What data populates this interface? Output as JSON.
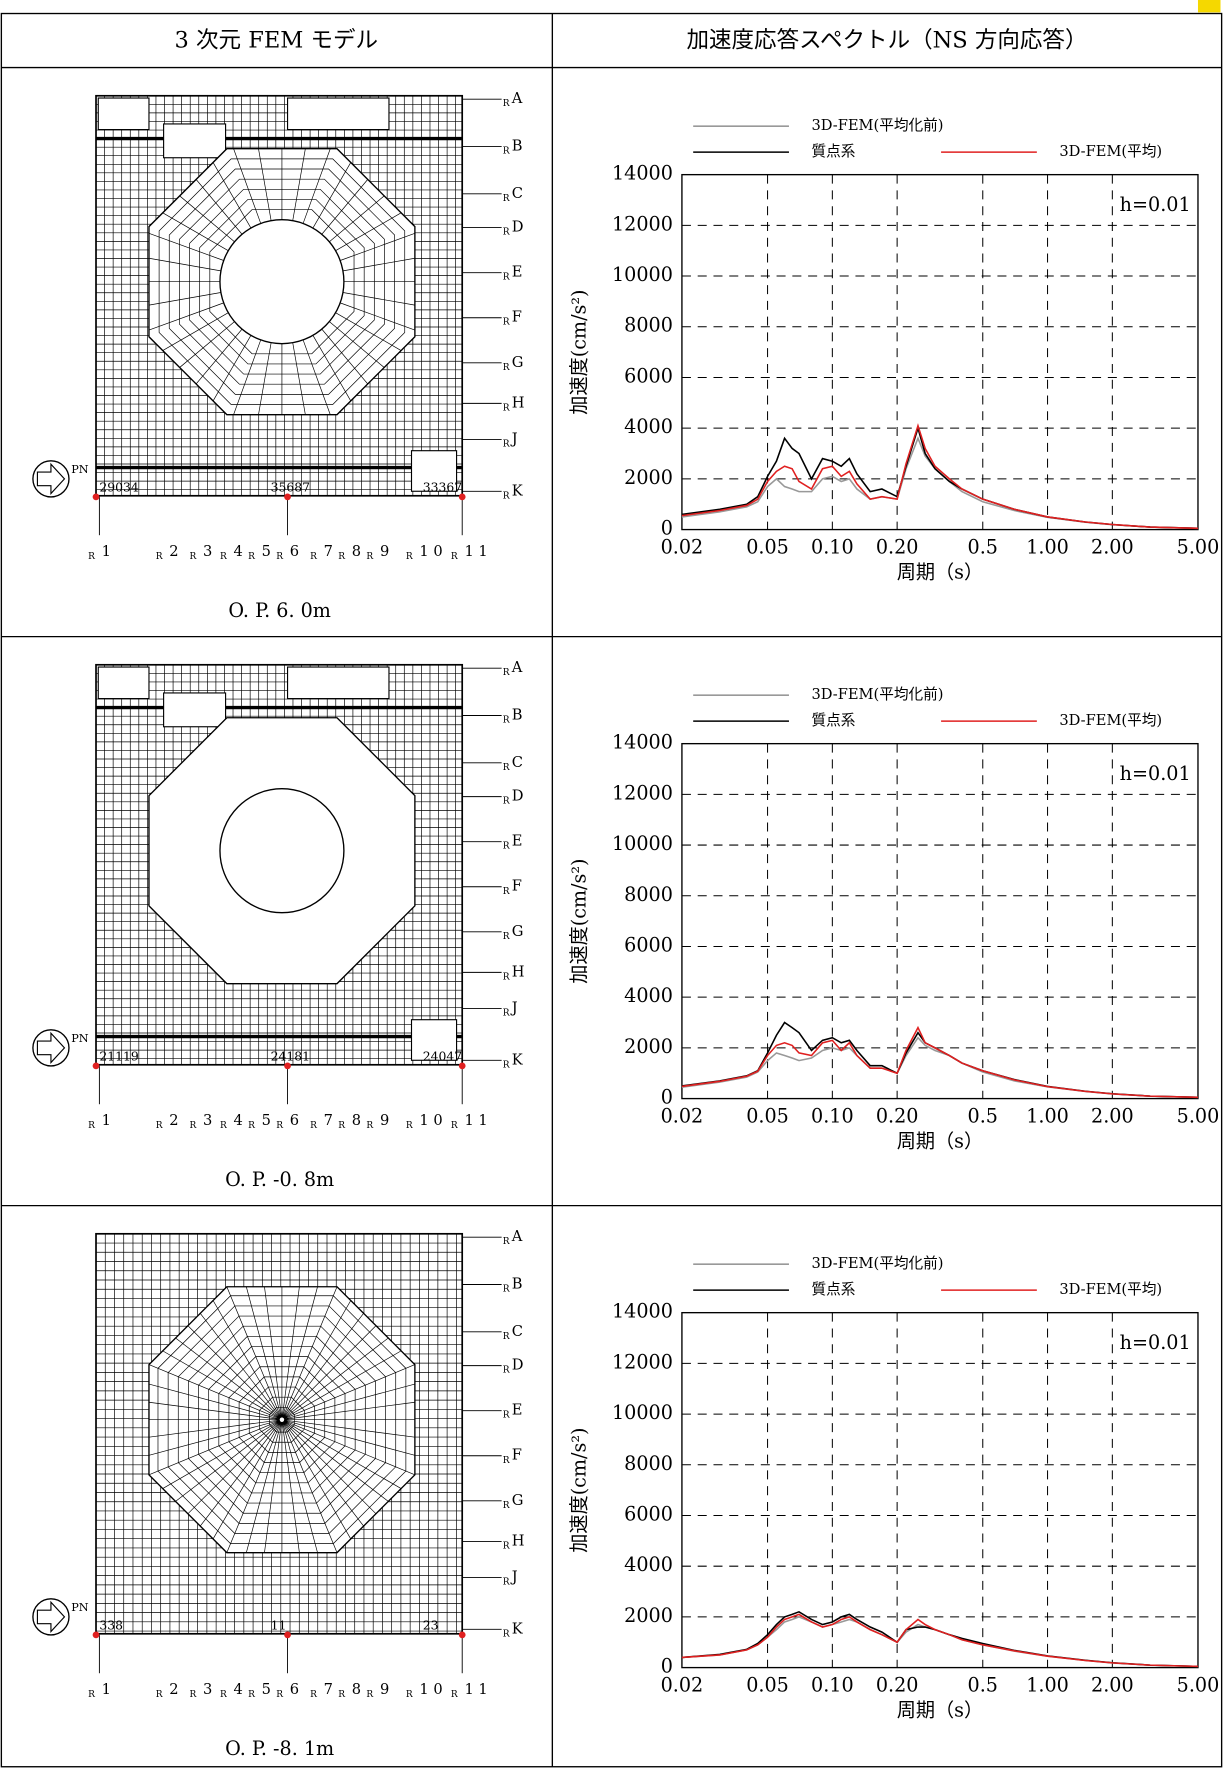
{
  "table": {
    "headers": [
      "3 次元 FEM モデル",
      "加速度応答スペクトル（NS 方向応答）"
    ],
    "rows": [
      {
        "model": {
          "level": "O. P. 6. 0m",
          "prefix": "R",
          "pn": "PN",
          "row_axes": [
            "A",
            "B",
            "C",
            "D",
            "E",
            "F",
            "G",
            "H",
            "J",
            "K"
          ],
          "col_axes": [
            "1",
            "2",
            "3",
            "4",
            "5",
            "6",
            "7",
            "8",
            "9",
            "1 0",
            "1 1"
          ],
          "node_labels": [
            "29034",
            "35687",
            "33367"
          ]
        },
        "chart": {
          "type": "line",
          "xlabel": "周期（s）",
          "ylabel": "加速度(cm/s²)",
          "annotation": "h=0.01",
          "log_x": true,
          "grid": true,
          "xlim": [
            0.02,
            5
          ],
          "ylim": [
            0,
            14000
          ],
          "xticks": [
            0.02,
            0.05,
            {
              "value": 0.1,
              "label": "0.10"
            },
            {
              "value": 0.2,
              "label": "0.20"
            },
            0.5,
            {
              "value": 1,
              "label": "1.00"
            },
            {
              "value": 2,
              "label": "2.00"
            },
            {
              "value": 5,
              "label": "5.00"
            }
          ],
          "yticks": [
            0,
            2000,
            4000,
            6000,
            8000,
            10000,
            12000,
            14000
          ],
          "x": [
            0.02,
            0.03,
            0.04,
            0.045,
            0.05,
            0.055,
            0.06,
            0.065,
            0.07,
            0.08,
            0.09,
            0.1,
            0.11,
            0.12,
            0.13,
            0.15,
            0.17,
            0.2,
            0.22,
            0.25,
            0.27,
            0.3,
            0.35,
            0.4,
            0.5,
            0.7,
            1,
            1.5,
            2,
            3,
            5
          ],
          "series": [
            {
              "name": "3D-FEM(平均化前)",
              "color": "#999999",
              "values": [
                500,
                700,
                900,
                1100,
                1700,
                2000,
                1700,
                1600,
                1500,
                1500,
                2000,
                2100,
                1900,
                2000,
                1600,
                1200,
                1300,
                1200,
                2400,
                3600,
                2900,
                2400,
                1900,
                1500,
                1100,
                750,
                480,
                290,
                190,
                100,
                50
              ]
            },
            {
              "name": "質点系",
              "color": "#000000",
              "values": [
                600,
                800,
                1000,
                1300,
                2100,
                2700,
                3600,
                3200,
                3000,
                2000,
                2800,
                2700,
                2500,
                2800,
                2200,
                1500,
                1600,
                1300,
                2500,
                4000,
                3000,
                2400,
                1900,
                1600,
                1200,
                800,
                500,
                300,
                200,
                100,
                50
              ]
            },
            {
              "name": "3D-FEM(平均)",
              "color": "#e02020",
              "values": [
                550,
                750,
                950,
                1200,
                1900,
                2300,
                2500,
                2400,
                1900,
                1600,
                2400,
                2500,
                2100,
                2300,
                1800,
                1200,
                1300,
                1200,
                2600,
                4100,
                3200,
                2500,
                2000,
                1600,
                1200,
                800,
                500,
                300,
                200,
                100,
                50
              ]
            }
          ]
        }
      },
      {
        "model": {
          "level": "O. P. -0. 8m",
          "prefix": "R",
          "pn": "PN",
          "row_axes": [
            "A",
            "B",
            "C",
            "D",
            "E",
            "F",
            "G",
            "H",
            "J",
            "K"
          ],
          "col_axes": [
            "1",
            "2",
            "3",
            "4",
            "5",
            "6",
            "7",
            "8",
            "9",
            "1 0",
            "1 1"
          ],
          "node_labels": [
            "21119",
            "24181",
            "24047"
          ]
        },
        "chart": {
          "type": "line",
          "xlabel": "周期（s）",
          "ylabel": "加速度(cm/s²)",
          "annotation": "h=0.01",
          "log_x": true,
          "grid": true,
          "xlim": [
            0.02,
            5
          ],
          "ylim": [
            0,
            14000
          ],
          "xticks": [
            0.02,
            0.05,
            {
              "value": 0.1,
              "label": "0.10"
            },
            {
              "value": 0.2,
              "label": "0.20"
            },
            0.5,
            {
              "value": 1,
              "label": "1.00"
            },
            {
              "value": 2,
              "label": "2.00"
            },
            {
              "value": 5,
              "label": "5.00"
            }
          ],
          "yticks": [
            0,
            2000,
            4000,
            6000,
            8000,
            10000,
            12000,
            14000
          ],
          "x": [
            0.02,
            0.03,
            0.04,
            0.045,
            0.05,
            0.055,
            0.06,
            0.065,
            0.07,
            0.08,
            0.09,
            0.1,
            0.11,
            0.12,
            0.13,
            0.15,
            0.17,
            0.2,
            0.22,
            0.25,
            0.27,
            0.3,
            0.35,
            0.4,
            0.5,
            0.7,
            1,
            1.5,
            2,
            3,
            5
          ],
          "series": [
            {
              "name": "3D-FEM(平均化前)",
              "color": "#999999",
              "values": [
                450,
                650,
                850,
                1050,
                1500,
                1800,
                1700,
                1600,
                1500,
                1600,
                1900,
                2000,
                1900,
                2000,
                1700,
                1200,
                1200,
                1000,
                1700,
                2400,
                2100,
                1900,
                1700,
                1400,
                1050,
                700,
                460,
                280,
                180,
                95,
                50
              ]
            },
            {
              "name": "質点系",
              "color": "#000000",
              "values": [
                500,
                700,
                900,
                1100,
                1800,
                2500,
                3000,
                2800,
                2600,
                1900,
                2300,
                2400,
                2200,
                2300,
                1900,
                1300,
                1300,
                1000,
                1800,
                2600,
                2200,
                2000,
                1700,
                1400,
                1100,
                750,
                480,
                290,
                190,
                100,
                50
              ]
            },
            {
              "name": "3D-FEM(平均)",
              "color": "#e02020",
              "values": [
                480,
                680,
                880,
                1080,
                1700,
                2100,
                2200,
                2100,
                1800,
                1700,
                2200,
                2300,
                1900,
                2200,
                1700,
                1200,
                1200,
                1000,
                1900,
                2800,
                2200,
                2000,
                1700,
                1400,
                1100,
                740,
                470,
                285,
                185,
                98,
                50
              ]
            }
          ]
        }
      },
      {
        "model": {
          "level": "O. P. -8. 1m",
          "prefix": "R",
          "pn": "PN",
          "row_axes": [
            "A",
            "B",
            "C",
            "D",
            "E",
            "F",
            "G",
            "H",
            "J",
            "K"
          ],
          "col_axes": [
            "1",
            "2",
            "3",
            "4",
            "5",
            "6",
            "7",
            "8",
            "9",
            "1 0",
            "1 1"
          ],
          "node_labels": [
            "338",
            "11",
            "23"
          ]
        },
        "chart": {
          "type": "line",
          "xlabel": "周期（s）",
          "ylabel": "加速度(cm/s²)",
          "annotation": "h=0.01",
          "log_x": true,
          "grid": true,
          "xlim": [
            0.02,
            5
          ],
          "ylim": [
            0,
            14000
          ],
          "xticks": [
            0.02,
            0.05,
            {
              "value": 0.1,
              "label": "0.10"
            },
            {
              "value": 0.2,
              "label": "0.20"
            },
            0.5,
            {
              "value": 1,
              "label": "1.00"
            },
            {
              "value": 2,
              "label": "2.00"
            },
            {
              "value": 5,
              "label": "5.00"
            }
          ],
          "yticks": [
            0,
            2000,
            4000,
            6000,
            8000,
            10000,
            12000,
            14000
          ],
          "x": [
            0.02,
            0.03,
            0.04,
            0.045,
            0.05,
            0.055,
            0.06,
            0.065,
            0.07,
            0.08,
            0.09,
            0.1,
            0.11,
            0.12,
            0.13,
            0.15,
            0.17,
            0.2,
            0.22,
            0.25,
            0.27,
            0.3,
            0.35,
            0.4,
            0.5,
            0.7,
            1,
            1.5,
            2,
            3,
            5
          ],
          "series": [
            {
              "name": "3D-FEM(平均化前)",
              "color": "#999999",
              "values": [
                400,
                500,
                700,
                900,
                1200,
                1500,
                1800,
                1900,
                2000,
                1800,
                1600,
                1700,
                1800,
                1900,
                1800,
                1500,
                1300,
                1000,
                1400,
                1700,
                1600,
                1500,
                1300,
                1100,
                900,
                650,
                450,
                280,
                180,
                95,
                50
              ]
            },
            {
              "name": "質点系",
              "color": "#000000",
              "values": [
                400,
                520,
                720,
                950,
                1300,
                1700,
                2000,
                2100,
                2200,
                1900,
                1700,
                1800,
                2000,
                2100,
                1900,
                1600,
                1400,
                1000,
                1500,
                1600,
                1600,
                1500,
                1300,
                1150,
                950,
                680,
                460,
                290,
                190,
                100,
                50
              ]
            },
            {
              "name": "3D-FEM(平均)",
              "color": "#e02020",
              "values": [
                400,
                500,
                700,
                900,
                1200,
                1600,
                1900,
                2000,
                2100,
                1800,
                1600,
                1700,
                1900,
                2000,
                1800,
                1500,
                1300,
                1000,
                1500,
                1900,
                1700,
                1500,
                1300,
                1100,
                900,
                660,
                450,
                280,
                185,
                98,
                50
              ]
            }
          ]
        }
      }
    ]
  }
}
